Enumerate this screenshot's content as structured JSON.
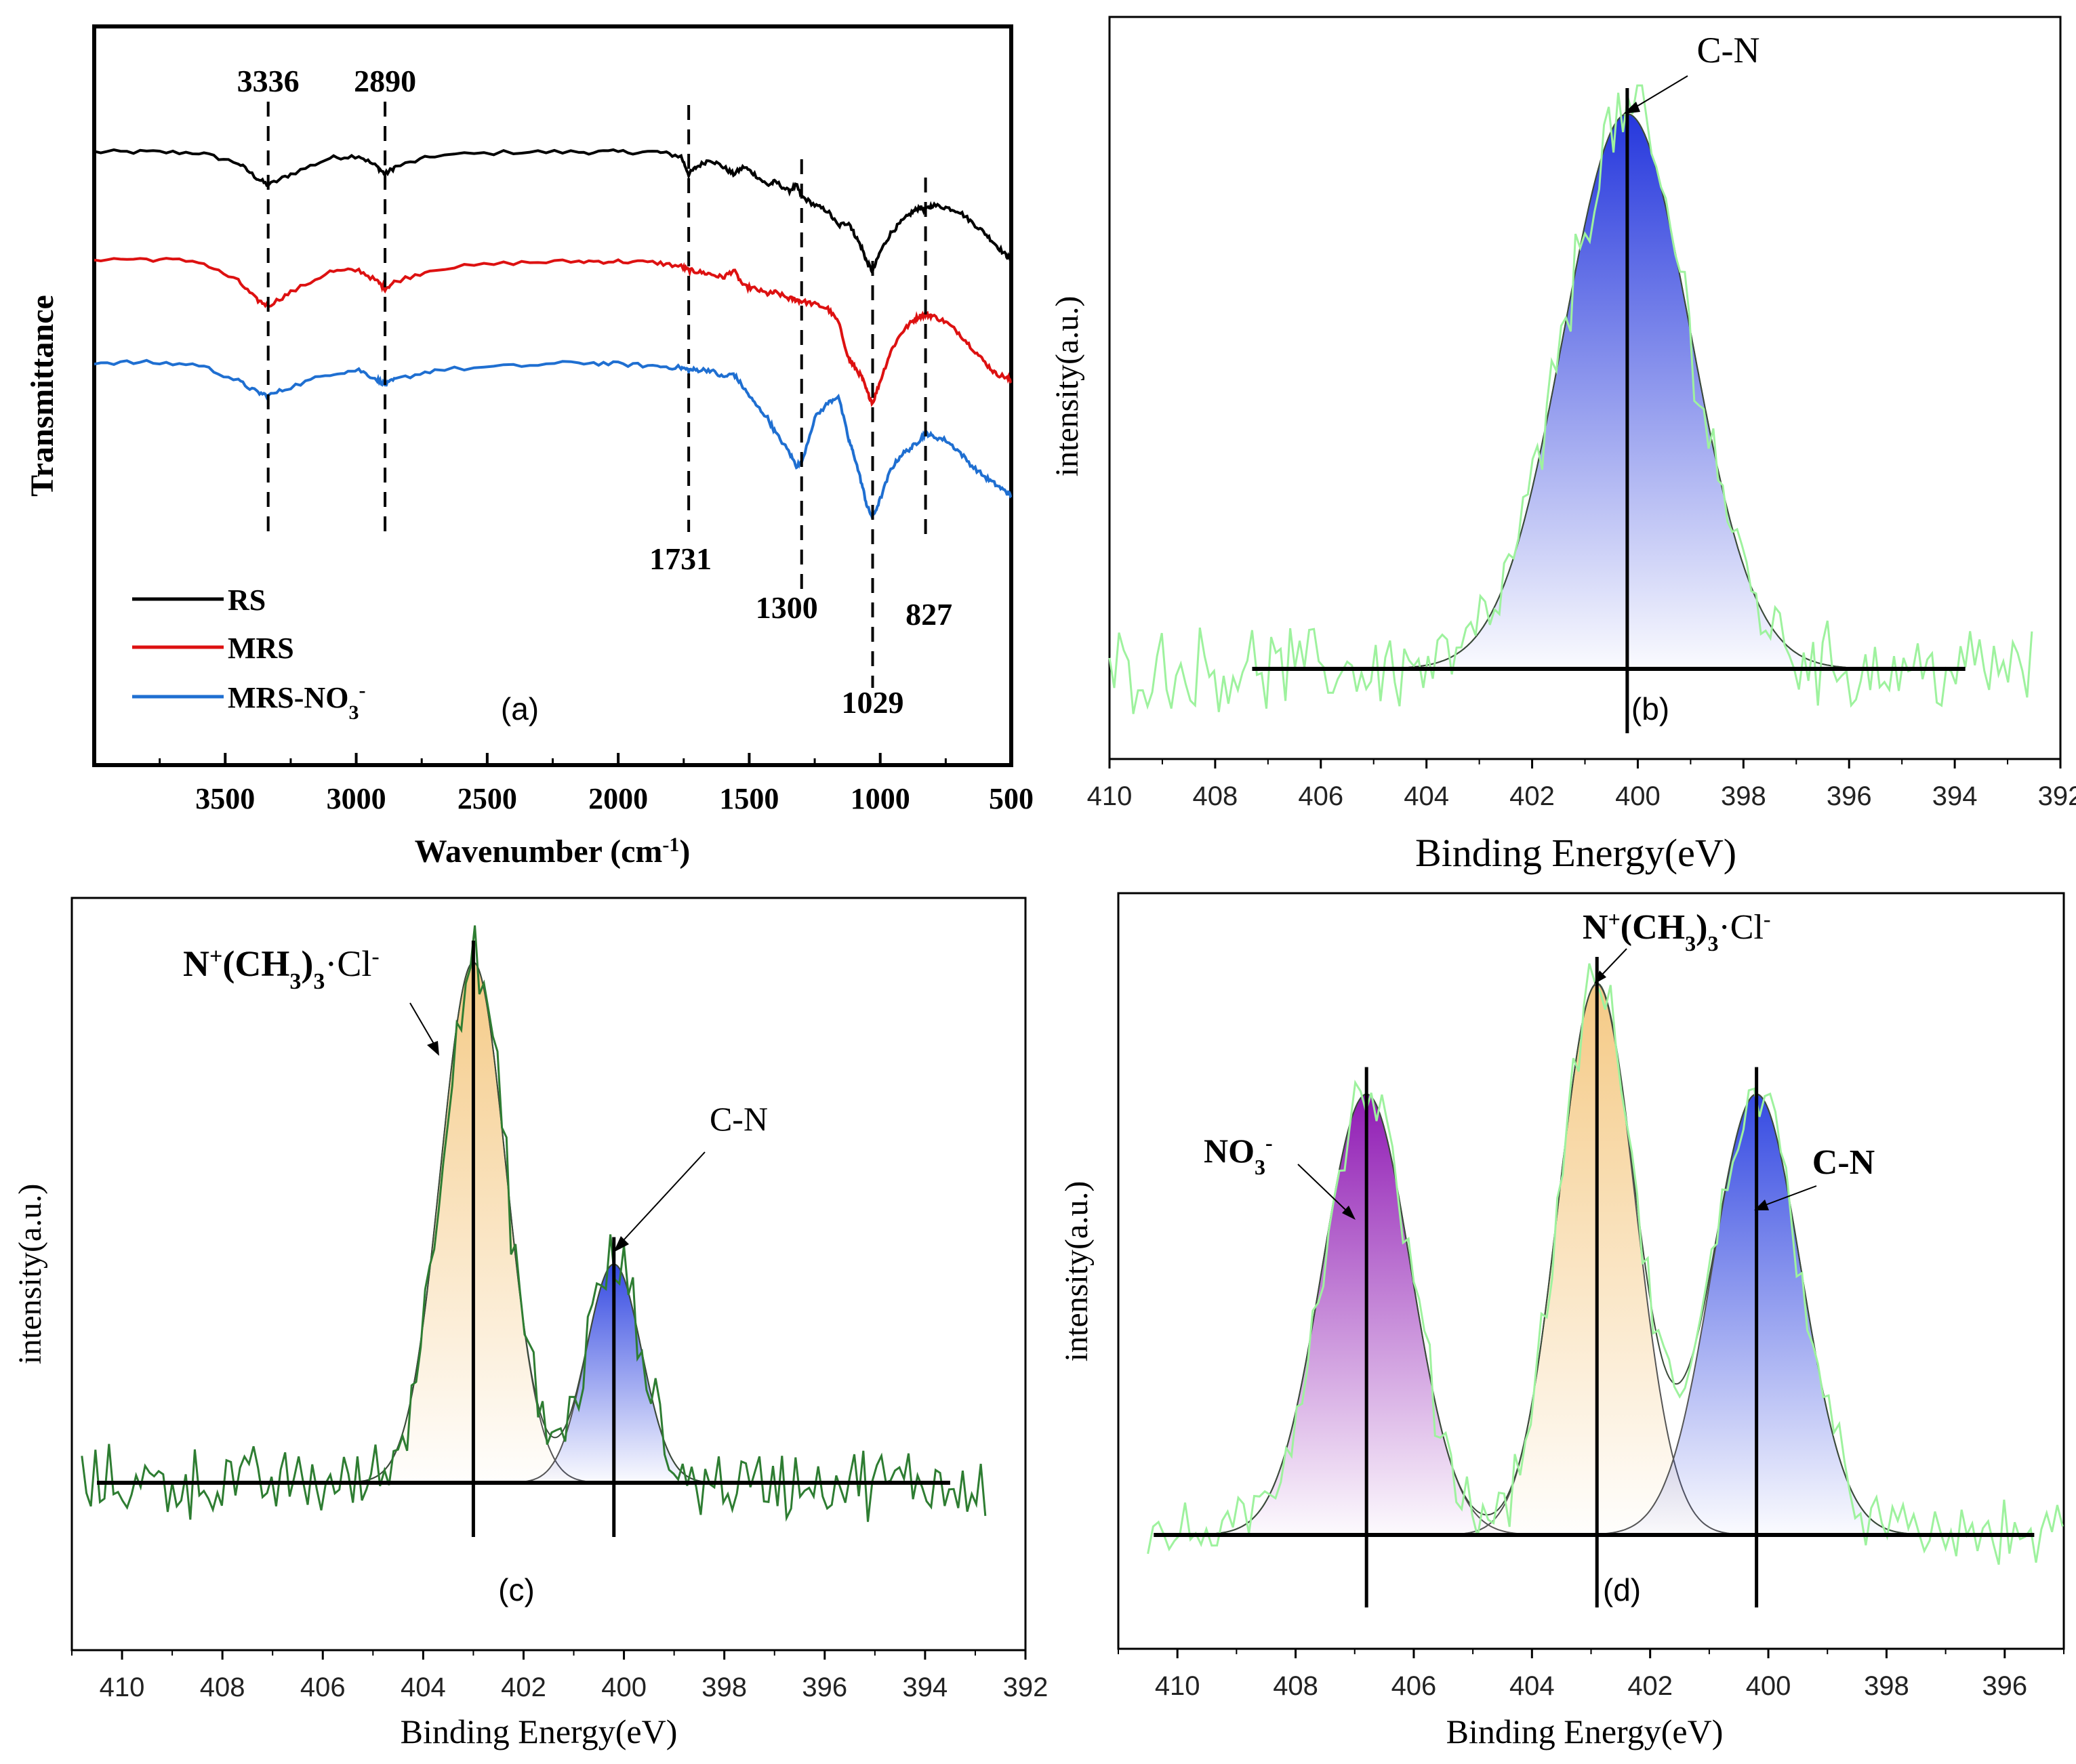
{
  "figure_title": "FTIR and XPS N1s spectra",
  "chart_data": [
    {
      "id": "a",
      "type": "line",
      "panel_label": "(a)",
      "title": "",
      "xlabel": "Wavenumber (cm",
      "xlabel_sup": "-1",
      "xlabel_close": ")",
      "ylabel": "Transmittance",
      "xlim": [
        4000,
        500
      ],
      "xticks": [
        3500,
        3000,
        2500,
        2000,
        1500,
        1000,
        500
      ],
      "ylim": [
        0,
        1
      ],
      "series": [
        {
          "name": "RS",
          "color": "#000000",
          "x": [
            4000,
            3800,
            3600,
            3450,
            3380,
            3336,
            3250,
            3100,
            2990,
            2920,
            2890,
            2850,
            2700,
            2400,
            2150,
            2000,
            1850,
            1760,
            1731,
            1700,
            1650,
            1600,
            1560,
            1520,
            1480,
            1430,
            1400,
            1350,
            1320,
            1300,
            1250,
            1200,
            1160,
            1120,
            1100,
            1070,
            1050,
            1029,
            1000,
            960,
            920,
            880,
            850,
            827,
            800,
            750,
            700,
            650,
            600,
            560,
            520,
            500
          ],
          "y": [
            0.83,
            0.83,
            0.829,
            0.815,
            0.795,
            0.785,
            0.8,
            0.822,
            0.825,
            0.81,
            0.8,
            0.81,
            0.825,
            0.83,
            0.83,
            0.83,
            0.83,
            0.824,
            0.8,
            0.81,
            0.82,
            0.81,
            0.8,
            0.81,
            0.8,
            0.785,
            0.79,
            0.777,
            0.785,
            0.77,
            0.758,
            0.75,
            0.73,
            0.735,
            0.72,
            0.7,
            0.68,
            0.668,
            0.695,
            0.72,
            0.735,
            0.748,
            0.755,
            0.752,
            0.758,
            0.755,
            0.75,
            0.735,
            0.72,
            0.705,
            0.69,
            0.685
          ]
        },
        {
          "name": "MRS",
          "color": "#dd1111",
          "x": [
            4000,
            3800,
            3600,
            3450,
            3380,
            3336,
            3250,
            3100,
            2990,
            2920,
            2890,
            2850,
            2700,
            2400,
            2150,
            2000,
            1850,
            1760,
            1731,
            1700,
            1650,
            1600,
            1560,
            1520,
            1480,
            1430,
            1400,
            1350,
            1320,
            1300,
            1250,
            1200,
            1160,
            1120,
            1100,
            1070,
            1050,
            1029,
            1000,
            960,
            920,
            880,
            850,
            827,
            800,
            750,
            700,
            650,
            600,
            560,
            520,
            500
          ],
          "y": [
            0.685,
            0.685,
            0.682,
            0.655,
            0.63,
            0.622,
            0.64,
            0.668,
            0.67,
            0.655,
            0.645,
            0.655,
            0.672,
            0.68,
            0.682,
            0.682,
            0.68,
            0.675,
            0.67,
            0.668,
            0.665,
            0.66,
            0.67,
            0.648,
            0.645,
            0.638,
            0.64,
            0.632,
            0.63,
            0.628,
            0.624,
            0.618,
            0.6,
            0.55,
            0.54,
            0.525,
            0.505,
            0.49,
            0.52,
            0.56,
            0.585,
            0.6,
            0.608,
            0.61,
            0.608,
            0.6,
            0.585,
            0.565,
            0.545,
            0.53,
            0.525,
            0.52
          ]
        },
        {
          "name": "MRS-NO3-",
          "label_main": "MRS-NO",
          "label_sub": "3",
          "label_sup": "-",
          "color": "#1f6fd1",
          "x": [
            4000,
            3800,
            3600,
            3450,
            3380,
            3336,
            3250,
            3100,
            2990,
            2920,
            2890,
            2850,
            2700,
            2400,
            2150,
            2000,
            1850,
            1760,
            1731,
            1700,
            1650,
            1600,
            1560,
            1520,
            1480,
            1430,
            1400,
            1350,
            1320,
            1300,
            1250,
            1200,
            1160,
            1120,
            1100,
            1070,
            1050,
            1029,
            1000,
            960,
            920,
            880,
            850,
            827,
            800,
            750,
            700,
            650,
            600,
            560,
            520,
            500
          ],
          "y": [
            0.545,
            0.545,
            0.542,
            0.52,
            0.505,
            0.5,
            0.512,
            0.53,
            0.535,
            0.522,
            0.515,
            0.522,
            0.535,
            0.54,
            0.545,
            0.543,
            0.54,
            0.538,
            0.535,
            0.535,
            0.535,
            0.525,
            0.53,
            0.51,
            0.49,
            0.47,
            0.45,
            0.425,
            0.405,
            0.41,
            0.47,
            0.49,
            0.5,
            0.44,
            0.42,
            0.38,
            0.35,
            0.335,
            0.36,
            0.4,
            0.42,
            0.43,
            0.44,
            0.45,
            0.445,
            0.44,
            0.425,
            0.405,
            0.39,
            0.38,
            0.37,
            0.365
          ]
        }
      ],
      "annotations": [
        {
          "text": "3336",
          "x": 3336,
          "label_pos": "top"
        },
        {
          "text": "2890",
          "x": 2890,
          "label_pos": "top"
        },
        {
          "text": "1731",
          "x": 1731,
          "label_pos": "bottom"
        },
        {
          "text": "1300",
          "x": 1300,
          "label_pos": "bottom"
        },
        {
          "text": "1029",
          "x": 1029,
          "label_pos": "bottom"
        },
        {
          "text": "827",
          "x": 827,
          "label_pos": "bottom"
        }
      ],
      "legend_position": "bottom-left"
    },
    {
      "id": "b",
      "type": "area",
      "panel_label": "(b)",
      "xlabel": "Binding Energy(eV)",
      "ylabel": "intensity(a.u.)",
      "xlim": [
        410,
        392
      ],
      "xticks": [
        410,
        408,
        406,
        404,
        402,
        400,
        398,
        396,
        394,
        392
      ],
      "baseline_range": [
        407.3,
        393.8
      ],
      "peaks": [
        {
          "name": "C-N",
          "label": "C-N",
          "center": 400.2,
          "height": 1.0,
          "width": 1.2,
          "color": "#1a2ddb",
          "bold": false
        }
      ],
      "raw_range": [
        410,
        392.5
      ],
      "raw_noise": 0.06,
      "raw_color": "#9ef29e"
    },
    {
      "id": "c",
      "type": "area",
      "panel_label": "(c)",
      "xlabel": "Binding Energy(eV)",
      "ylabel": "intensity(a.u.)",
      "xlim": [
        411,
        392
      ],
      "xticks": [
        410,
        408,
        406,
        404,
        402,
        400,
        398,
        396,
        394,
        392
      ],
      "baseline_range": [
        410.5,
        393.5
      ],
      "peaks": [
        {
          "name": "N+(CH3)3·Cl-",
          "center": 403.0,
          "height": 1.0,
          "width": 0.65,
          "color": "#f4c77f",
          "bold": true
        },
        {
          "name": "C-N",
          "label": "C-N",
          "center": 400.2,
          "height": 0.42,
          "width": 0.55,
          "color": "#2a40e0",
          "bold": false
        }
      ],
      "raw_range": [
        410.8,
        392.8
      ],
      "raw_noise": 0.055,
      "raw_color": "#2e7d32"
    },
    {
      "id": "d",
      "type": "area",
      "panel_label": "(d)",
      "xlabel": "Binding Energy(eV)",
      "ylabel": "intensity(a.u.)",
      "xlim": [
        411,
        395
      ],
      "xticks": [
        410,
        408,
        406,
        404,
        402,
        400,
        398,
        396
      ],
      "baseline_range": [
        410.4,
        395.5
      ],
      "peaks": [
        {
          "name": "NO3-",
          "center": 406.8,
          "height": 0.8,
          "width": 0.75,
          "color": "#8a0fb0",
          "bold": true
        },
        {
          "name": "N+(CH3)3·Cl-",
          "center": 402.9,
          "height": 1.0,
          "width": 0.65,
          "color": "#f4c77f",
          "bold": false
        },
        {
          "name": "C-N",
          "label": "C-N",
          "center": 400.2,
          "height": 0.8,
          "width": 0.75,
          "color": "#2a40e0",
          "bold": true
        }
      ],
      "raw_range": [
        410.5,
        395
      ],
      "raw_noise": 0.045,
      "raw_color": "#9ef29e"
    }
  ]
}
